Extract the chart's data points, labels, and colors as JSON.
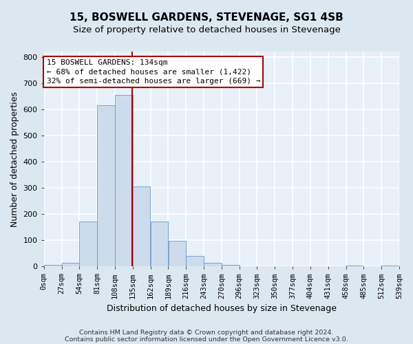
{
  "title": "15, BOSWELL GARDENS, STEVENAGE, SG1 4SB",
  "subtitle": "Size of property relative to detached houses in Stevenage",
  "xlabel": "Distribution of detached houses by size in Stevenage",
  "ylabel": "Number of detached properties",
  "bar_left_edges": [
    0,
    27,
    54,
    81,
    108,
    135,
    162,
    189,
    216,
    243,
    270,
    296,
    323,
    350,
    377,
    404,
    431,
    458,
    485,
    512
  ],
  "bar_heights": [
    5,
    13,
    170,
    615,
    655,
    305,
    172,
    98,
    40,
    13,
    5,
    0,
    0,
    0,
    0,
    0,
    0,
    2,
    0,
    2
  ],
  "bin_width": 27,
  "bar_color": "#ccdcec",
  "bar_edge_color": "#6699cc",
  "property_size": 134,
  "vline_color": "#aa0000",
  "annotation_line1": "15 BOSWELL GARDENS: 134sqm",
  "annotation_line2": "← 68% of detached houses are smaller (1,422)",
  "annotation_line3": "32% of semi-detached houses are larger (669) →",
  "annotation_box_facecolor": "#ffffff",
  "annotation_box_edgecolor": "#aa0000",
  "tick_labels": [
    "0sqm",
    "27sqm",
    "54sqm",
    "81sqm",
    "108sqm",
    "135sqm",
    "162sqm",
    "189sqm",
    "216sqm",
    "243sqm",
    "270sqm",
    "296sqm",
    "323sqm",
    "350sqm",
    "377sqm",
    "404sqm",
    "431sqm",
    "458sqm",
    "485sqm",
    "512sqm",
    "539sqm"
  ],
  "ylim": [
    0,
    820
  ],
  "yticks": [
    0,
    100,
    200,
    300,
    400,
    500,
    600,
    700,
    800
  ],
  "footnote1": "Contains HM Land Registry data © Crown copyright and database right 2024.",
  "footnote2": "Contains public sector information licensed under the Open Government Licence v3.0.",
  "fig_facecolor": "#dce8f0",
  "plot_facecolor": "#e8f0f8",
  "grid_color": "#ffffff",
  "title_fontsize": 11,
  "subtitle_fontsize": 9.5,
  "xlabel_fontsize": 9,
  "ylabel_fontsize": 9,
  "tick_fontsize": 7.5,
  "annotation_fontsize": 8,
  "footnote_fontsize": 6.8
}
